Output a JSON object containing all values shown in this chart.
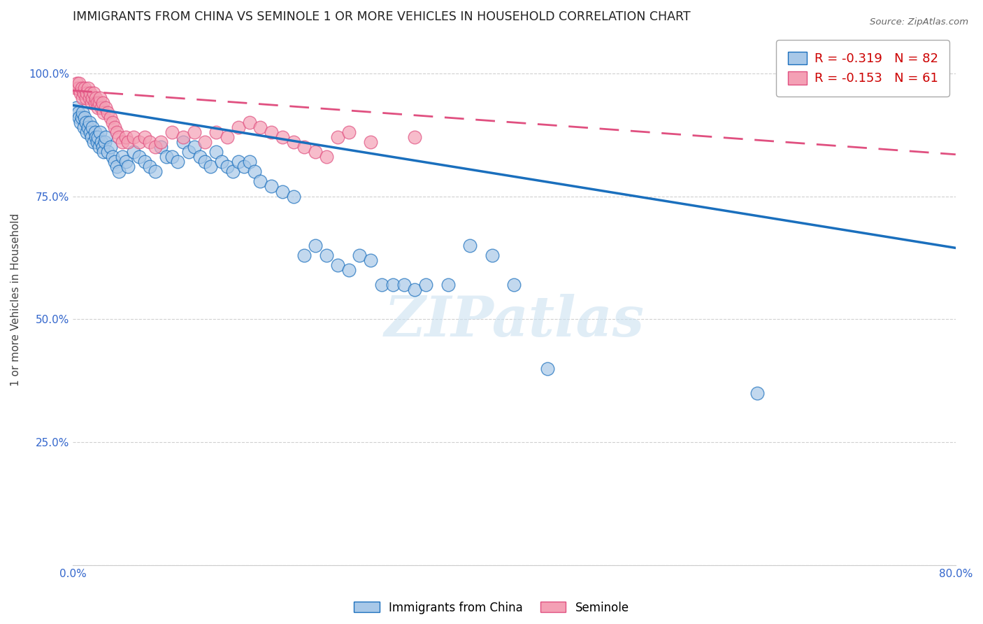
{
  "title": "IMMIGRANTS FROM CHINA VS SEMINOLE 1 OR MORE VEHICLES IN HOUSEHOLD CORRELATION CHART",
  "source": "Source: ZipAtlas.com",
  "ylabel": "1 or more Vehicles in Household",
  "legend_label1": "Immigrants from China",
  "legend_label2": "Seminole",
  "R1": -0.319,
  "N1": 82,
  "R2": -0.153,
  "N2": 61,
  "xmin": 0.0,
  "xmax": 0.8,
  "ymin": 0.0,
  "ymax": 1.08,
  "yticks": [
    0.0,
    0.25,
    0.5,
    0.75,
    1.0
  ],
  "ytick_labels": [
    "",
    "25.0%",
    "50.0%",
    "75.0%",
    "100.0%"
  ],
  "xtick_positions": [
    0.0,
    0.1,
    0.2,
    0.3,
    0.4,
    0.5,
    0.6,
    0.7,
    0.8
  ],
  "xtick_labels": [
    "0.0%",
    "",
    "",
    "",
    "",
    "",
    "",
    "",
    "80.0%"
  ],
  "color_blue": "#a8c8e8",
  "color_pink": "#f4a0b5",
  "line_blue": "#1a6fbd",
  "line_pink": "#e05080",
  "watermark": "ZIPatlas",
  "blue_trend_x0": 0.0,
  "blue_trend_y0": 0.935,
  "blue_trend_x1": 0.8,
  "blue_trend_y1": 0.645,
  "pink_trend_x0": 0.0,
  "pink_trend_y0": 0.965,
  "pink_trend_x1": 0.8,
  "pink_trend_y1": 0.835,
  "blue_points_x": [
    0.003,
    0.005,
    0.006,
    0.007,
    0.008,
    0.009,
    0.01,
    0.011,
    0.012,
    0.013,
    0.014,
    0.015,
    0.016,
    0.017,
    0.018,
    0.019,
    0.02,
    0.021,
    0.022,
    0.023,
    0.024,
    0.025,
    0.026,
    0.027,
    0.028,
    0.029,
    0.03,
    0.032,
    0.034,
    0.036,
    0.038,
    0.04,
    0.042,
    0.045,
    0.048,
    0.05,
    0.055,
    0.06,
    0.065,
    0.07,
    0.075,
    0.08,
    0.085,
    0.09,
    0.095,
    0.1,
    0.105,
    0.11,
    0.115,
    0.12,
    0.125,
    0.13,
    0.135,
    0.14,
    0.145,
    0.15,
    0.155,
    0.16,
    0.165,
    0.17,
    0.18,
    0.19,
    0.2,
    0.21,
    0.22,
    0.23,
    0.24,
    0.25,
    0.26,
    0.27,
    0.28,
    0.29,
    0.3,
    0.31,
    0.32,
    0.34,
    0.36,
    0.38,
    0.4,
    0.43,
    0.62,
    0.77
  ],
  "blue_points_y": [
    0.93,
    0.92,
    0.91,
    0.9,
    0.91,
    0.92,
    0.89,
    0.91,
    0.9,
    0.88,
    0.89,
    0.9,
    0.88,
    0.87,
    0.89,
    0.86,
    0.88,
    0.87,
    0.86,
    0.87,
    0.85,
    0.88,
    0.86,
    0.85,
    0.84,
    0.86,
    0.87,
    0.84,
    0.85,
    0.83,
    0.82,
    0.81,
    0.8,
    0.83,
    0.82,
    0.81,
    0.84,
    0.83,
    0.82,
    0.81,
    0.8,
    0.85,
    0.83,
    0.83,
    0.82,
    0.86,
    0.84,
    0.85,
    0.83,
    0.82,
    0.81,
    0.84,
    0.82,
    0.81,
    0.8,
    0.82,
    0.81,
    0.82,
    0.8,
    0.78,
    0.77,
    0.76,
    0.75,
    0.63,
    0.65,
    0.63,
    0.61,
    0.6,
    0.63,
    0.62,
    0.57,
    0.57,
    0.57,
    0.56,
    0.57,
    0.57,
    0.65,
    0.63,
    0.57,
    0.4,
    0.35,
    1.01
  ],
  "pink_points_x": [
    0.003,
    0.004,
    0.005,
    0.006,
    0.007,
    0.008,
    0.009,
    0.01,
    0.011,
    0.012,
    0.013,
    0.014,
    0.015,
    0.016,
    0.017,
    0.018,
    0.019,
    0.02,
    0.021,
    0.022,
    0.023,
    0.024,
    0.025,
    0.026,
    0.027,
    0.028,
    0.03,
    0.032,
    0.034,
    0.036,
    0.038,
    0.04,
    0.042,
    0.045,
    0.048,
    0.05,
    0.055,
    0.06,
    0.065,
    0.07,
    0.075,
    0.08,
    0.09,
    0.1,
    0.11,
    0.12,
    0.13,
    0.14,
    0.15,
    0.16,
    0.17,
    0.18,
    0.19,
    0.2,
    0.21,
    0.22,
    0.23,
    0.24,
    0.25,
    0.27,
    0.31
  ],
  "pink_points_y": [
    0.97,
    0.98,
    0.97,
    0.98,
    0.96,
    0.97,
    0.95,
    0.96,
    0.97,
    0.95,
    0.96,
    0.97,
    0.95,
    0.96,
    0.94,
    0.95,
    0.96,
    0.94,
    0.95,
    0.94,
    0.93,
    0.94,
    0.95,
    0.93,
    0.94,
    0.92,
    0.93,
    0.92,
    0.91,
    0.9,
    0.89,
    0.88,
    0.87,
    0.86,
    0.87,
    0.86,
    0.87,
    0.86,
    0.87,
    0.86,
    0.85,
    0.86,
    0.88,
    0.87,
    0.88,
    0.86,
    0.88,
    0.87,
    0.89,
    0.9,
    0.89,
    0.88,
    0.87,
    0.86,
    0.85,
    0.84,
    0.83,
    0.87,
    0.88,
    0.86,
    0.87
  ]
}
